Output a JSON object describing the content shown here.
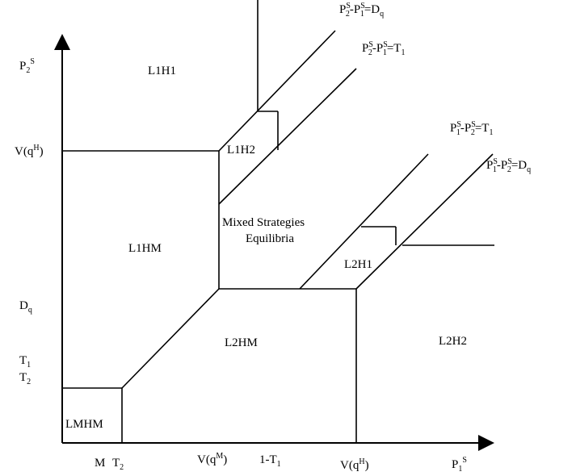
{
  "labels": {
    "axis_y": {
      "base": "P",
      "sub": "2",
      "sup": "S"
    },
    "axis_x": {
      "base": "P",
      "sub": "1",
      "sup": "S"
    },
    "line_d_upper": {
      "p1": "P",
      "p1sub": "2",
      "p1sup": "S",
      "mid": "-P",
      "p2sub": "1",
      "p2sup": "S",
      "eq": "=D",
      "rsub": "q"
    },
    "line_t_upper": {
      "p1": "P",
      "p1sub": "2",
      "p1sup": "S",
      "mid": "-P",
      "p2sub": "1",
      "p2sup": "S",
      "eq": "=T",
      "rsub": "1"
    },
    "line_t_lower": {
      "p1": "P",
      "p1sub": "1",
      "p1sup": "S",
      "mid": "-P",
      "p2sub": "2",
      "p2sup": "S",
      "eq": "=T",
      "rsub": "1"
    },
    "line_d_lower": {
      "p1": "P",
      "p1sub": "1",
      "p1sup": "S",
      "mid": "-P",
      "p2sub": "2",
      "p2sup": "S",
      "eq": "=D",
      "rsub": "q"
    },
    "y_vqh": {
      "base": "V(q",
      "sup": "H",
      "end": ")"
    },
    "y_dq": {
      "base": "D",
      "sub": "q"
    },
    "y_t1": {
      "base": "T",
      "sub": "1"
    },
    "y_t2": {
      "base": "T",
      "sub": "2"
    },
    "x_m": "M",
    "x_t2": {
      "base": "T",
      "sub": "2"
    },
    "x_vqm": {
      "base": "V(q",
      "sup": "M",
      "end": ")"
    },
    "x_1t1": {
      "base": "1-T",
      "sub": "1"
    },
    "x_vqh": {
      "base": "V(q",
      "sup": "H",
      "end": ")"
    }
  },
  "regions": {
    "l1h1": "L1H1",
    "l1h2": "L1H2",
    "l1hm": "L1HM",
    "mixed_line1": "Mixed Strategies",
    "mixed_line2": "Equilibria",
    "l2h1": "L2H1",
    "l2hm": "L2HM",
    "l2h2": "L2H2",
    "lmhm": "LMHM"
  }
}
